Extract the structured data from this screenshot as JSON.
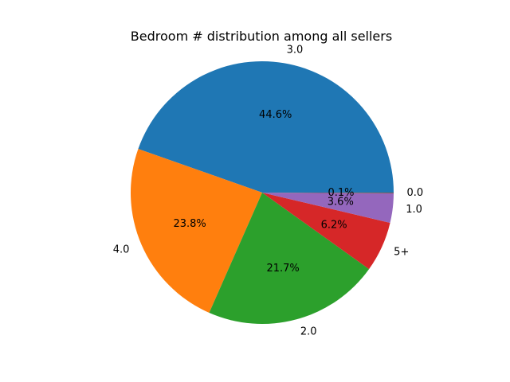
{
  "chart_data": {
    "type": "pie",
    "title": "Bedroom # distribution among all sellers",
    "start_angle": "0 (3 o'clock)",
    "direction": "counterclockwise",
    "slices": [
      {
        "label": "3.0",
        "value": 44.6,
        "pct_text": "44.6%",
        "color": "#1f77b4"
      },
      {
        "label": "4.0",
        "value": 23.8,
        "pct_text": "23.8%",
        "color": "#ff7f0e"
      },
      {
        "label": "2.0",
        "value": 21.7,
        "pct_text": "21.7%",
        "color": "#2ca02c"
      },
      {
        "label": "5+",
        "value": 6.2,
        "pct_text": "6.2%",
        "color": "#d62728"
      },
      {
        "label": "1.0",
        "value": 3.6,
        "pct_text": "3.6%",
        "color": "#9467bd"
      },
      {
        "label": "0.0",
        "value": 0.1,
        "pct_text": "0.1%",
        "color": "#8c564b"
      }
    ]
  }
}
